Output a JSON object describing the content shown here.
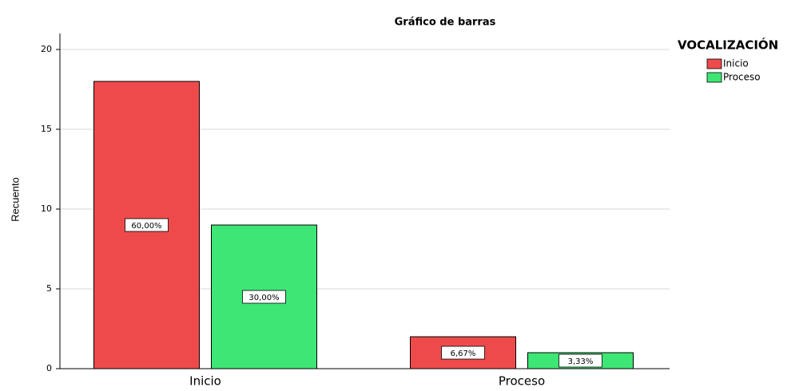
{
  "chart_data": {
    "type": "bar",
    "title": "Gráfico de barras",
    "ylabel": "Recuento",
    "categories": [
      "Inicio",
      "Proceso"
    ],
    "legend_title": "VOCALIZACIÓN",
    "series": [
      {
        "name": "Inicio",
        "color": "#ee4a4c",
        "values": [
          18,
          2
        ],
        "data_labels": [
          "60,00%",
          "6,67%"
        ]
      },
      {
        "name": "Proceso",
        "color": "#3ee676",
        "values": [
          9,
          1
        ],
        "data_labels": [
          "30,00%",
          "3,33%"
        ]
      }
    ],
    "ylim": [
      0,
      21
    ],
    "yticks": [
      0,
      5,
      10,
      15,
      20
    ],
    "grid": true,
    "legend": "right"
  }
}
